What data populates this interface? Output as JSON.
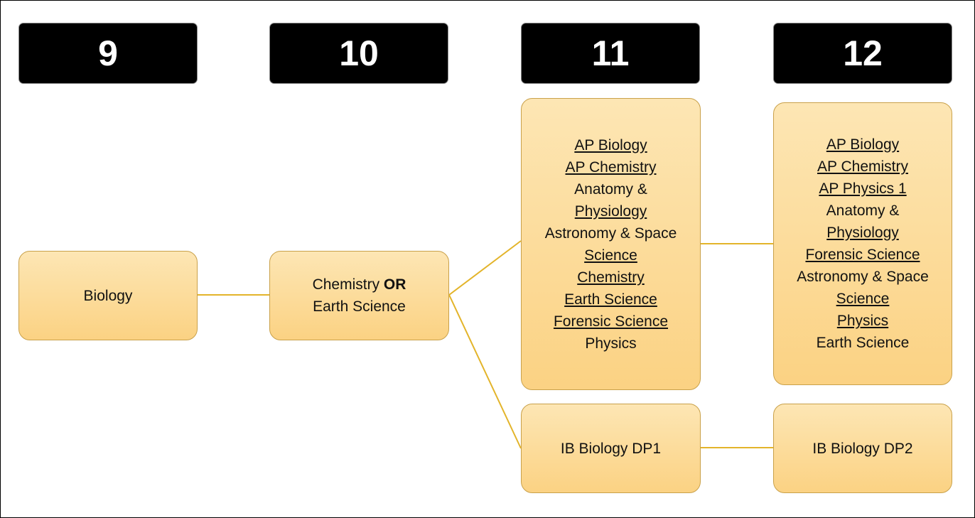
{
  "grades": [
    "9",
    "10",
    "11",
    "12"
  ],
  "nodes": [
    {
      "lines": [
        [
          {
            "text": "Biology"
          }
        ]
      ]
    },
    {
      "lines": [
        [
          {
            "text": "Chemistry "
          },
          {
            "text": "OR",
            "bold": true
          }
        ],
        [
          {
            "text": "Earth Science"
          }
        ]
      ]
    },
    {
      "lines": [
        [
          {
            "text": "AP Biology",
            "underline": true
          }
        ],
        [
          {
            "text": "AP Chemistry",
            "underline": true
          }
        ],
        [
          {
            "text": "Anatomy &"
          }
        ],
        [
          {
            "text": "Physiology",
            "underline": true
          }
        ],
        [
          {
            "text": "Astronomy & Space"
          }
        ],
        [
          {
            "text": "Science",
            "underline": true
          }
        ],
        [
          {
            "text": "Chemistry",
            "underline": true
          }
        ],
        [
          {
            "text": "Earth Science",
            "underline": true
          }
        ],
        [
          {
            "text": "Forensic Science",
            "underline": true
          }
        ],
        [
          {
            "text": "Physics"
          }
        ]
      ]
    },
    {
      "lines": [
        [
          {
            "text": "AP Biology",
            "underline": true
          }
        ],
        [
          {
            "text": "AP Chemistry",
            "underline": true
          }
        ],
        [
          {
            "text": "AP Physics 1",
            "underline": true
          }
        ],
        [
          {
            "text": "Anatomy &"
          }
        ],
        [
          {
            "text": "Physiology",
            "underline": true
          }
        ],
        [
          {
            "text": "Forensic Science",
            "underline": true
          }
        ],
        [
          {
            "text": "Astronomy & Space"
          }
        ],
        [
          {
            "text": "Science",
            "underline": true
          }
        ],
        [
          {
            "text": "Physics",
            "underline": true
          }
        ],
        [
          {
            "text": "Earth Science"
          }
        ]
      ]
    },
    {
      "lines": [
        [
          {
            "text": "IB Biology DP1"
          }
        ]
      ]
    },
    {
      "lines": [
        [
          {
            "text": "IB Biology DP2"
          }
        ]
      ]
    }
  ]
}
